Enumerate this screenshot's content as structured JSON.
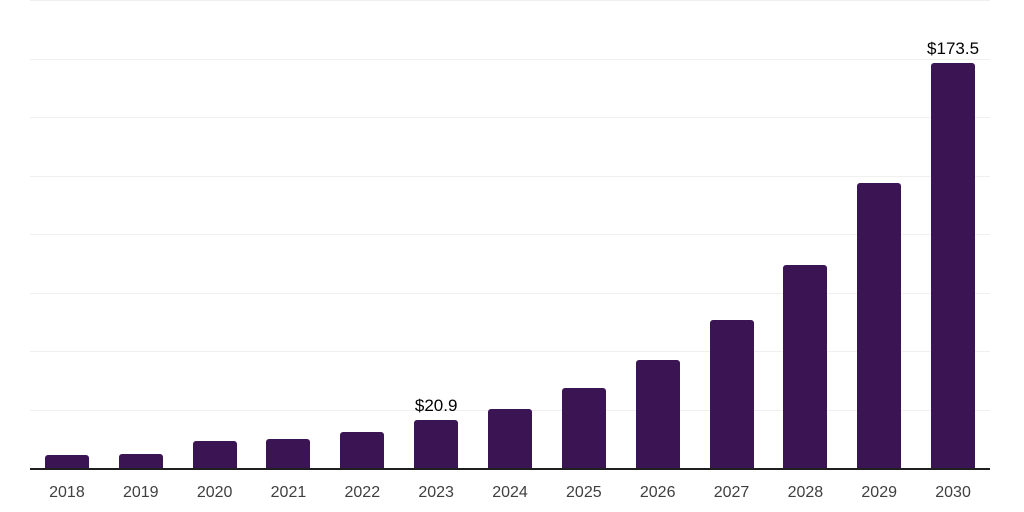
{
  "chart_data": {
    "type": "bar",
    "title": "",
    "xlabel": "",
    "ylabel": "",
    "categories": [
      "2018",
      "2019",
      "2020",
      "2021",
      "2022",
      "2023",
      "2024",
      "2025",
      "2026",
      "2027",
      "2028",
      "2029",
      "2030"
    ],
    "values": [
      6.0,
      6.4,
      11.8,
      12.8,
      15.8,
      20.9,
      25.7,
      34.7,
      46.7,
      63.5,
      87.3,
      122.2,
      173.5
    ],
    "bar_labels": [
      "",
      "",
      "",
      "",
      "",
      "$20.9",
      "",
      "",
      "",
      "",
      "",
      "",
      "$173.5"
    ],
    "ylim": [
      0,
      200
    ],
    "grid_step": 25,
    "grid": "horizontal",
    "legend_position": "none"
  },
  "colors": {
    "bar": "#3a1453",
    "gridline": "#f0f0f0",
    "axis_line": "#1f1f1f",
    "tick_label": "#3f3f3f",
    "value_label": "#000000",
    "background": "#ffffff"
  }
}
